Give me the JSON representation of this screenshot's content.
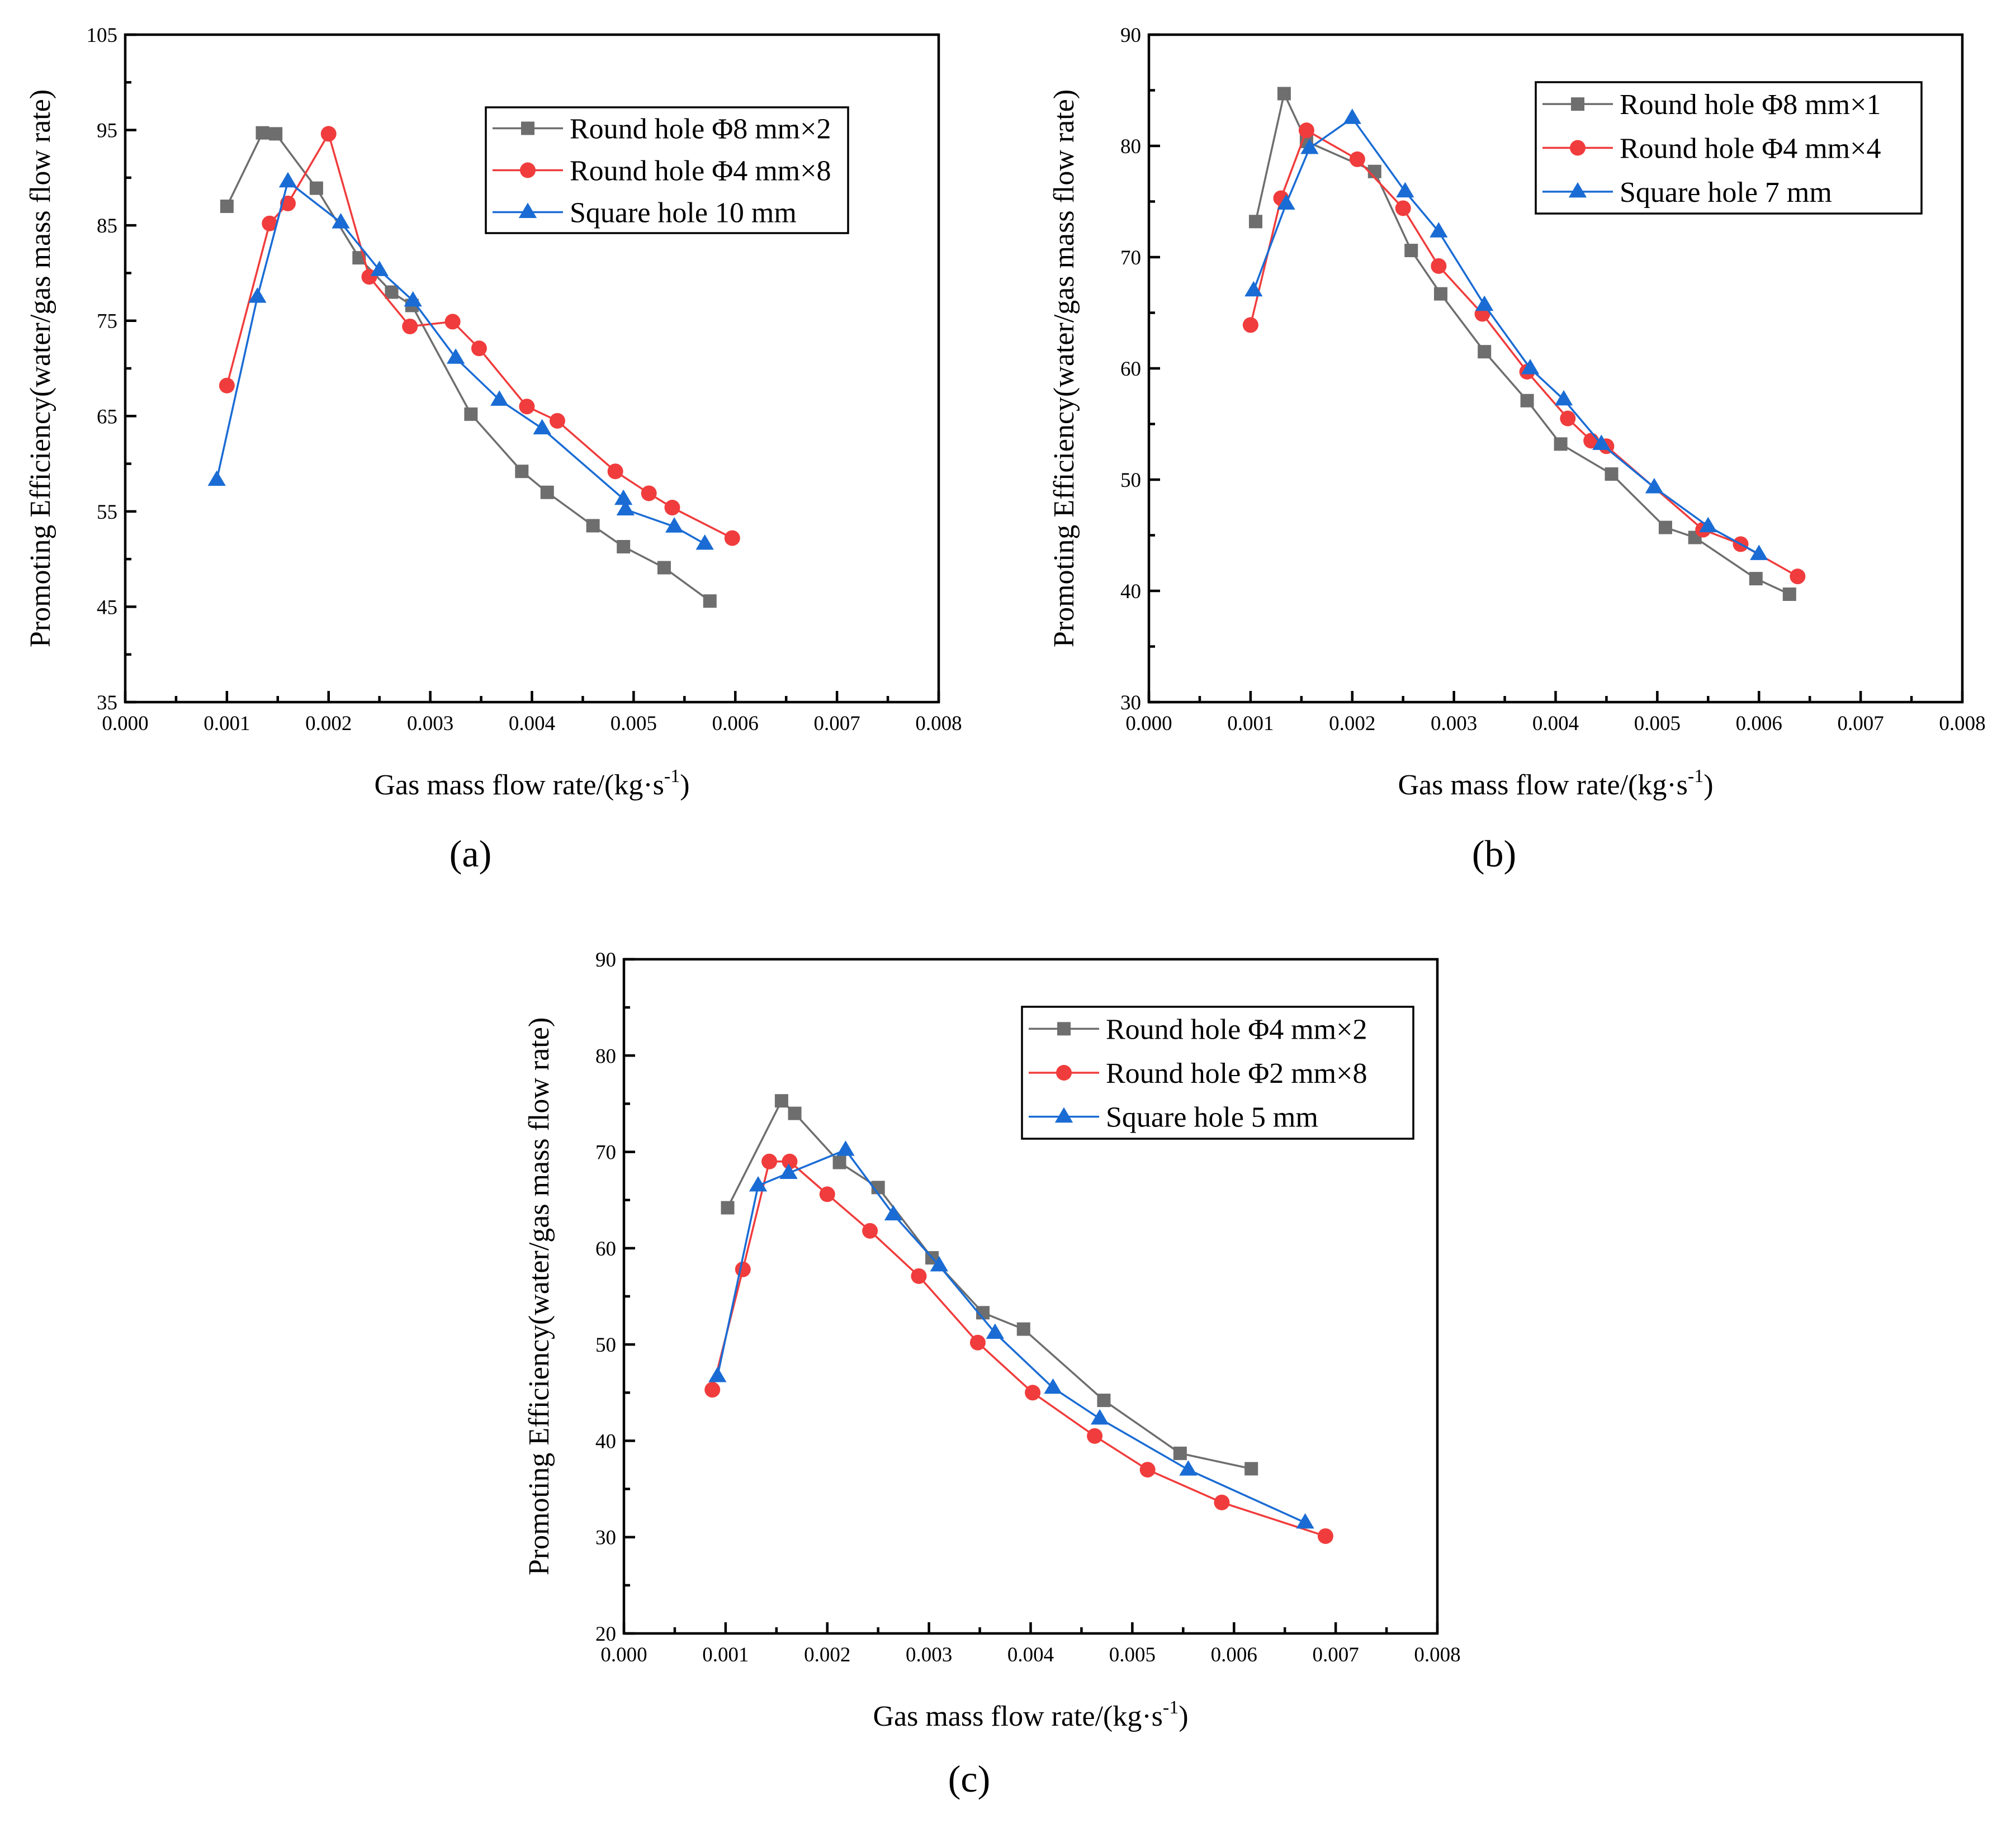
{
  "chart_data": [
    {
      "type": "line",
      "panel_label": "(a)",
      "xlabel": "Gas mass flow rate/(kg·s",
      "xlabel_superscript": "-1",
      "xlabel_close": ")",
      "ylabel": "Promoting Efficiency(water/gas mass flow rate)",
      "xlim": [
        0,
        0.008
      ],
      "ylim": [
        35,
        105
      ],
      "x_ticks": [
        "0.000",
        "0.001",
        "0.002",
        "0.003",
        "0.004",
        "0.005",
        "0.006",
        "0.007",
        "0.008"
      ],
      "y_ticks": [
        "35",
        "45",
        "55",
        "65",
        "75",
        "85",
        "95",
        "105"
      ],
      "legend_position": "top-right",
      "series": [
        {
          "name": "Round  hole Φ8 mm×2",
          "color": "#6e6e6e",
          "marker": "square",
          "x": [
            0.001,
            0.00135,
            0.00148,
            0.00188,
            0.0023,
            0.00262,
            0.00282,
            0.0034,
            0.0039,
            0.00415,
            0.0046,
            0.0049,
            0.0053,
            0.00575
          ],
          "y": [
            87.0,
            94.7,
            94.6,
            88.9,
            81.6,
            78.0,
            76.6,
            65.2,
            59.2,
            57.0,
            53.5,
            51.3,
            49.1,
            45.6
          ]
        },
        {
          "name": "Round  hole Φ4 mm×8",
          "color": "#f03c3c",
          "marker": "circle",
          "x": [
            0.001,
            0.00142,
            0.0016,
            0.002,
            0.0024,
            0.0028,
            0.00322,
            0.00348,
            0.00395,
            0.00425,
            0.00482,
            0.00515,
            0.00538,
            0.00597
          ],
          "y": [
            68.2,
            85.2,
            87.3,
            94.6,
            79.6,
            74.4,
            74.9,
            72.1,
            66.0,
            64.5,
            59.2,
            56.9,
            55.4,
            52.2
          ]
        },
        {
          "name": "Square  hole 10 mm",
          "color": "#1a6cd4",
          "marker": "triangle",
          "x": [
            0.0009,
            0.0013,
            0.0016,
            0.00212,
            0.0025,
            0.00283,
            0.00325,
            0.00368,
            0.0041,
            0.0049,
            0.00492,
            0.0054,
            0.0057
          ],
          "y": [
            58.3,
            77.5,
            89.6,
            85.3,
            80.3,
            77.1,
            71.1,
            66.7,
            63.7,
            56.3,
            55.2,
            53.4,
            51.6
          ]
        }
      ]
    },
    {
      "type": "line",
      "panel_label": "(b)",
      "xlabel": "Gas mass flow rate/(kg·s",
      "xlabel_superscript": "-1",
      "xlabel_close": ")",
      "ylabel": "Promoting Efficiency(water/gas mass flow rate)",
      "xlim": [
        0,
        0.008
      ],
      "ylim": [
        30,
        90
      ],
      "x_ticks": [
        "0.000",
        "0.001",
        "0.002",
        "0.003",
        "0.004",
        "0.005",
        "0.006",
        "0.007",
        "0.008"
      ],
      "y_ticks": [
        "30",
        "40",
        "50",
        "60",
        "70",
        "80",
        "90"
      ],
      "legend_position": "top-right",
      "series": [
        {
          "name": "Round hole Φ8 mm×1",
          "color": "#6e6e6e",
          "marker": "square",
          "x": [
            0.00105,
            0.00133,
            0.00155,
            0.00222,
            0.00258,
            0.00287,
            0.0033,
            0.00372,
            0.00405,
            0.00455,
            0.00508,
            0.00537,
            0.00597,
            0.0063
          ],
          "y": [
            73.2,
            84.7,
            80.4,
            77.7,
            70.6,
            66.7,
            61.5,
            57.1,
            53.2,
            50.5,
            45.7,
            44.8,
            41.1,
            39.7
          ]
        },
        {
          "name": "Round hole Φ4 mm×4",
          "color": "#f03c3c",
          "marker": "circle",
          "x": [
            0.001,
            0.0013,
            0.00155,
            0.00205,
            0.0025,
            0.00285,
            0.00328,
            0.00372,
            0.00412,
            0.00435,
            0.0045,
            0.00545,
            0.00582,
            0.00638
          ],
          "y": [
            63.9,
            75.3,
            81.4,
            78.8,
            74.4,
            69.2,
            64.9,
            59.7,
            55.5,
            53.5,
            53.0,
            45.5,
            44.2,
            41.3
          ]
        },
        {
          "name": "Square hole 7 mm",
          "color": "#1a6cd4",
          "marker": "triangle",
          "x": [
            0.00103,
            0.00135,
            0.00158,
            0.002,
            0.00252,
            0.00285,
            0.0033,
            0.00375,
            0.00408,
            0.00445,
            0.00497,
            0.0055,
            0.006
          ],
          "y": [
            67.0,
            74.8,
            79.8,
            82.5,
            75.9,
            72.3,
            65.7,
            60.0,
            57.2,
            53.2,
            49.3,
            45.8,
            43.3
          ]
        }
      ]
    },
    {
      "type": "line",
      "panel_label": "(c)",
      "xlabel": "Gas mass flow rate/(kg·s",
      "xlabel_superscript": "-1",
      "xlabel_close": ")",
      "ylabel": "Promoting Efficiency(water/gas mass flow rate)",
      "xlim": [
        0,
        0.008
      ],
      "ylim": [
        20,
        90
      ],
      "x_ticks": [
        "0.000",
        "0.001",
        "0.002",
        "0.003",
        "0.004",
        "0.005",
        "0.006",
        "0.007",
        "0.008"
      ],
      "y_ticks": [
        "20",
        "30",
        "40",
        "50",
        "60",
        "70",
        "80",
        "90"
      ],
      "legend_position": "top-right",
      "series": [
        {
          "name": "Round hole Φ4 mm×2",
          "color": "#6e6e6e",
          "marker": "square",
          "x": [
            0.00102,
            0.00155,
            0.00168,
            0.00212,
            0.0025,
            0.00303,
            0.00353,
            0.00393,
            0.00472,
            0.00547,
            0.00617
          ],
          "y": [
            64.2,
            75.3,
            74.0,
            68.9,
            66.3,
            59.0,
            53.3,
            51.6,
            44.2,
            38.7,
            37.1
          ]
        },
        {
          "name": "Round hole Φ2 mm×8",
          "color": "#f03c3c",
          "marker": "circle",
          "x": [
            0.00087,
            0.00117,
            0.00143,
            0.00163,
            0.002,
            0.00242,
            0.0029,
            0.00348,
            0.00402,
            0.00463,
            0.00515,
            0.00588,
            0.0069
          ],
          "y": [
            45.3,
            57.8,
            69.0,
            69.0,
            65.6,
            61.8,
            57.1,
            50.2,
            45.0,
            40.5,
            37.0,
            33.6,
            30.1
          ]
        },
        {
          "name": "Square hole 5 mm",
          "color": "#1a6cd4",
          "marker": "triangle",
          "x": [
            0.00092,
            0.00132,
            0.00162,
            0.00218,
            0.00265,
            0.0031,
            0.00365,
            0.00422,
            0.00468,
            0.00555,
            0.0067
          ],
          "y": [
            46.7,
            66.5,
            67.8,
            70.2,
            63.5,
            58.2,
            51.2,
            45.5,
            42.3,
            37.0,
            31.5
          ]
        }
      ]
    }
  ]
}
